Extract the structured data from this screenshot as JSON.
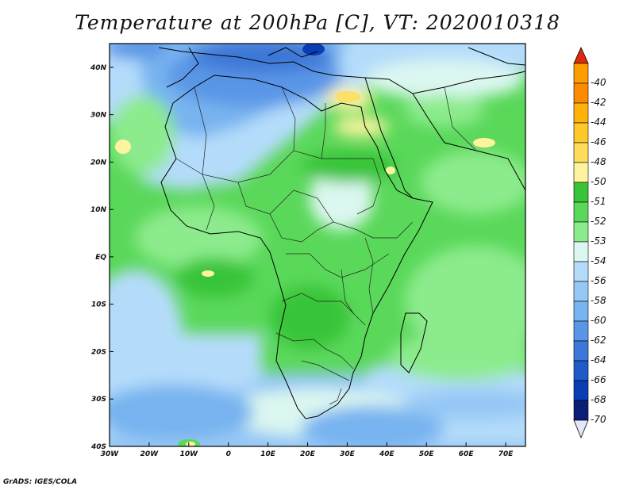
{
  "title": "Temperature at 200hPa [C], VT: 2020010318",
  "credit": "GrADS: IGES/COLA",
  "map": {
    "variable": "Temperature",
    "level": "200hPa",
    "units": "C",
    "valid_time": "2020010318",
    "region": "Africa",
    "lon_range": [
      -30,
      75
    ],
    "lat_range": [
      -40,
      45
    ],
    "lat_ticks": [
      {
        "value": 40,
        "label": "40N"
      },
      {
        "value": 30,
        "label": "30N"
      },
      {
        "value": 20,
        "label": "20N"
      },
      {
        "value": 10,
        "label": "10N"
      },
      {
        "value": 0,
        "label": "EQ"
      },
      {
        "value": -10,
        "label": "10S"
      },
      {
        "value": -20,
        "label": "20S"
      },
      {
        "value": -30,
        "label": "30S"
      },
      {
        "value": -40,
        "label": "40S"
      }
    ],
    "lon_ticks": [
      {
        "value": -30,
        "label": "30W"
      },
      {
        "value": -20,
        "label": "20W"
      },
      {
        "value": -10,
        "label": "10W"
      },
      {
        "value": 0,
        "label": "0"
      },
      {
        "value": 10,
        "label": "10E"
      },
      {
        "value": 20,
        "label": "20E"
      },
      {
        "value": 30,
        "label": "30E"
      },
      {
        "value": 40,
        "label": "40E"
      },
      {
        "value": 50,
        "label": "50E"
      },
      {
        "value": 60,
        "label": "60E"
      },
      {
        "value": 70,
        "label": "70E"
      }
    ]
  },
  "colorbar": {
    "levels": [
      {
        "label": "-40",
        "color": "#fe9d00"
      },
      {
        "label": "-42",
        "color": "#fe8a00"
      },
      {
        "label": "-44",
        "color": "#feb20a"
      },
      {
        "label": "-46",
        "color": "#fec828"
      },
      {
        "label": "-48",
        "color": "#fedc5a"
      },
      {
        "label": "-50",
        "color": "#fef4a0"
      },
      {
        "label": "-51",
        "color": "#38c438"
      },
      {
        "label": "-52",
        "color": "#5ad85a"
      },
      {
        "label": "-53",
        "color": "#8ceb8c"
      },
      {
        "label": "-54",
        "color": "#dcf7f0"
      },
      {
        "label": "-56",
        "color": "#b4dcfa"
      },
      {
        "label": "-58",
        "color": "#96c8f5"
      },
      {
        "label": "-60",
        "color": "#78b4f0"
      },
      {
        "label": "-62",
        "color": "#5a96e6"
      },
      {
        "label": "-64",
        "color": "#3c78d7"
      },
      {
        "label": "-66",
        "color": "#1e5ac8"
      },
      {
        "label": "-68",
        "color": "#0a3cb4"
      },
      {
        "label": "-70",
        "color": "#0a1e78"
      }
    ],
    "top_arrow_color": "#e0280e",
    "bottom_arrow_color": "#e6e6fa"
  }
}
